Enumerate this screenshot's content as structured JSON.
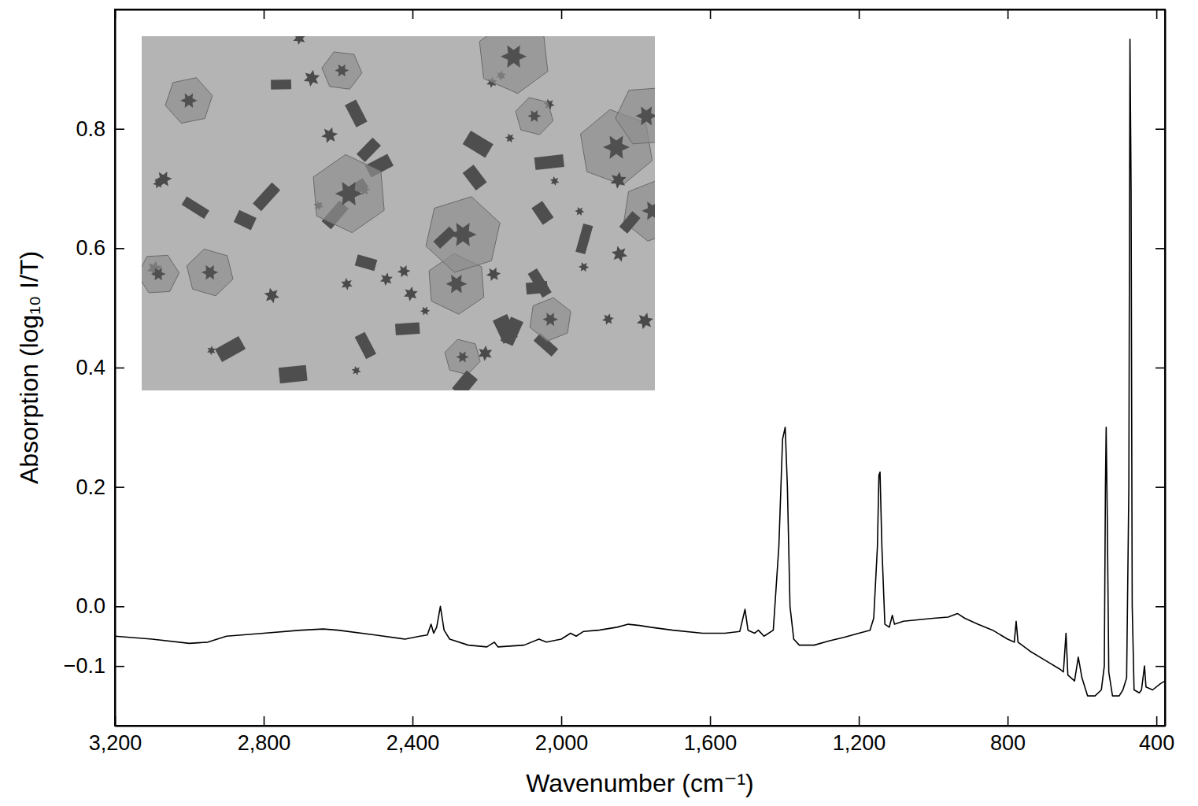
{
  "chart_data": {
    "type": "line",
    "xlabel": "Wavenumber (cm⁻¹)",
    "ylabel": "Absorption (log₁₀ I/T)",
    "color": "#000000",
    "xlim": [
      3200,
      377
    ],
    "ylim": [
      -0.2,
      1.0
    ],
    "xticks": [
      {
        "value": 3200,
        "label": "3,200"
      },
      {
        "value": 2800,
        "label": "2,800"
      },
      {
        "value": 2400,
        "label": "2,400"
      },
      {
        "value": 2000,
        "label": "2,000"
      },
      {
        "value": 1600,
        "label": "1,600"
      },
      {
        "value": 1200,
        "label": "1,200"
      },
      800,
      400
    ],
    "yticks": [
      {
        "value": -0.1,
        "label": "−0.1"
      },
      {
        "value": 0,
        "label": "0.0"
      },
      0.2,
      0.4,
      0.6,
      0.8
    ],
    "x": [
      3200,
      3100,
      3000,
      2950,
      2900,
      2800,
      2700,
      2640,
      2600,
      2500,
      2420,
      2380,
      2360,
      2350,
      2343,
      2335,
      2325,
      2315,
      2300,
      2250,
      2200,
      2180,
      2170,
      2100,
      2060,
      2040,
      2000,
      1975,
      1960,
      1940,
      1900,
      1850,
      1820,
      1790,
      1760,
      1700,
      1620,
      1560,
      1520,
      1506,
      1498,
      1480,
      1470,
      1455,
      1430,
      1415,
      1405,
      1398,
      1392,
      1385,
      1375,
      1360,
      1320,
      1280,
      1240,
      1200,
      1170,
      1160,
      1150,
      1146,
      1143,
      1138,
      1130,
      1118,
      1110,
      1104,
      1080,
      1000,
      960,
      935,
      915,
      880,
      840,
      800,
      782,
      777,
      772,
      740,
      700,
      660,
      650,
      643,
      638,
      620,
      610,
      600,
      585,
      565,
      548,
      540,
      537,
      535,
      532,
      528,
      518,
      500,
      490,
      480,
      474,
      471,
      468,
      465,
      460,
      446,
      440,
      432,
      428,
      410,
      390,
      377
    ],
    "values": [
      -0.05,
      -0.055,
      -0.062,
      -0.06,
      -0.05,
      -0.045,
      -0.04,
      -0.038,
      -0.04,
      -0.048,
      -0.055,
      -0.05,
      -0.048,
      -0.03,
      -0.045,
      -0.035,
      0.0,
      -0.04,
      -0.055,
      -0.065,
      -0.068,
      -0.06,
      -0.068,
      -0.065,
      -0.055,
      -0.06,
      -0.055,
      -0.045,
      -0.05,
      -0.042,
      -0.04,
      -0.035,
      -0.03,
      -0.032,
      -0.035,
      -0.04,
      -0.045,
      -0.045,
      -0.042,
      -0.005,
      -0.04,
      -0.045,
      -0.04,
      -0.05,
      -0.04,
      0.1,
      0.28,
      0.3,
      0.2,
      0.0,
      -0.055,
      -0.065,
      -0.065,
      -0.058,
      -0.052,
      -0.045,
      -0.04,
      -0.02,
      0.1,
      0.22,
      0.225,
      0.1,
      -0.03,
      -0.035,
      -0.015,
      -0.03,
      -0.025,
      -0.02,
      -0.018,
      -0.012,
      -0.02,
      -0.03,
      -0.04,
      -0.055,
      -0.06,
      -0.025,
      -0.06,
      -0.075,
      -0.09,
      -0.105,
      -0.11,
      -0.045,
      -0.115,
      -0.125,
      -0.085,
      -0.12,
      -0.15,
      -0.15,
      -0.14,
      -0.1,
      0.2,
      0.3,
      0.15,
      -0.11,
      -0.15,
      -0.15,
      -0.14,
      -0.12,
      0.2,
      0.95,
      0.7,
      0.0,
      -0.14,
      -0.145,
      -0.14,
      -0.1,
      -0.135,
      -0.14,
      -0.13,
      -0.125
    ]
  }
}
